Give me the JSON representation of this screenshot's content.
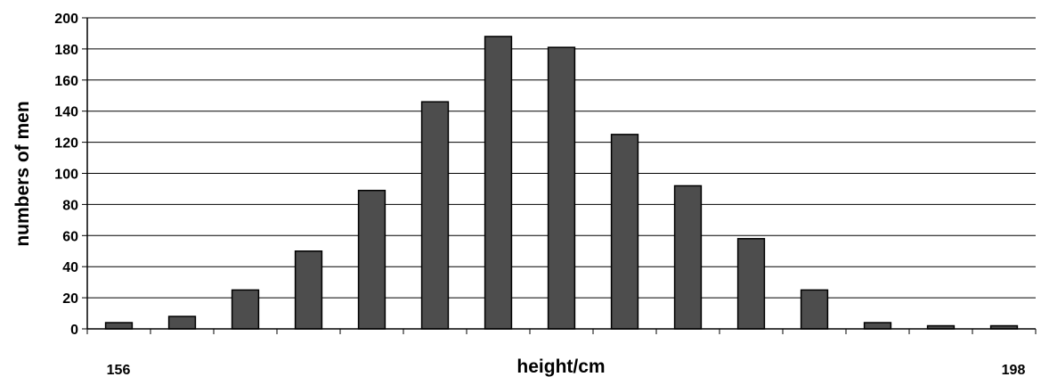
{
  "chart_data": {
    "type": "bar",
    "xlabel": "height/cm",
    "ylabel": "numbers of men",
    "x_edge_labels": {
      "left": "156",
      "right": "198"
    },
    "ylim": [
      0,
      200
    ],
    "y_ticks": [
      "0",
      "20",
      "40",
      "60",
      "80",
      "100",
      "120",
      "140",
      "160",
      "180",
      "200"
    ],
    "grid": true,
    "legend": "none",
    "bar_color": "#4d4d4d",
    "values": [
      4,
      8,
      25,
      50,
      89,
      146,
      188,
      181,
      125,
      92,
      58,
      25,
      4,
      2,
      2
    ]
  }
}
